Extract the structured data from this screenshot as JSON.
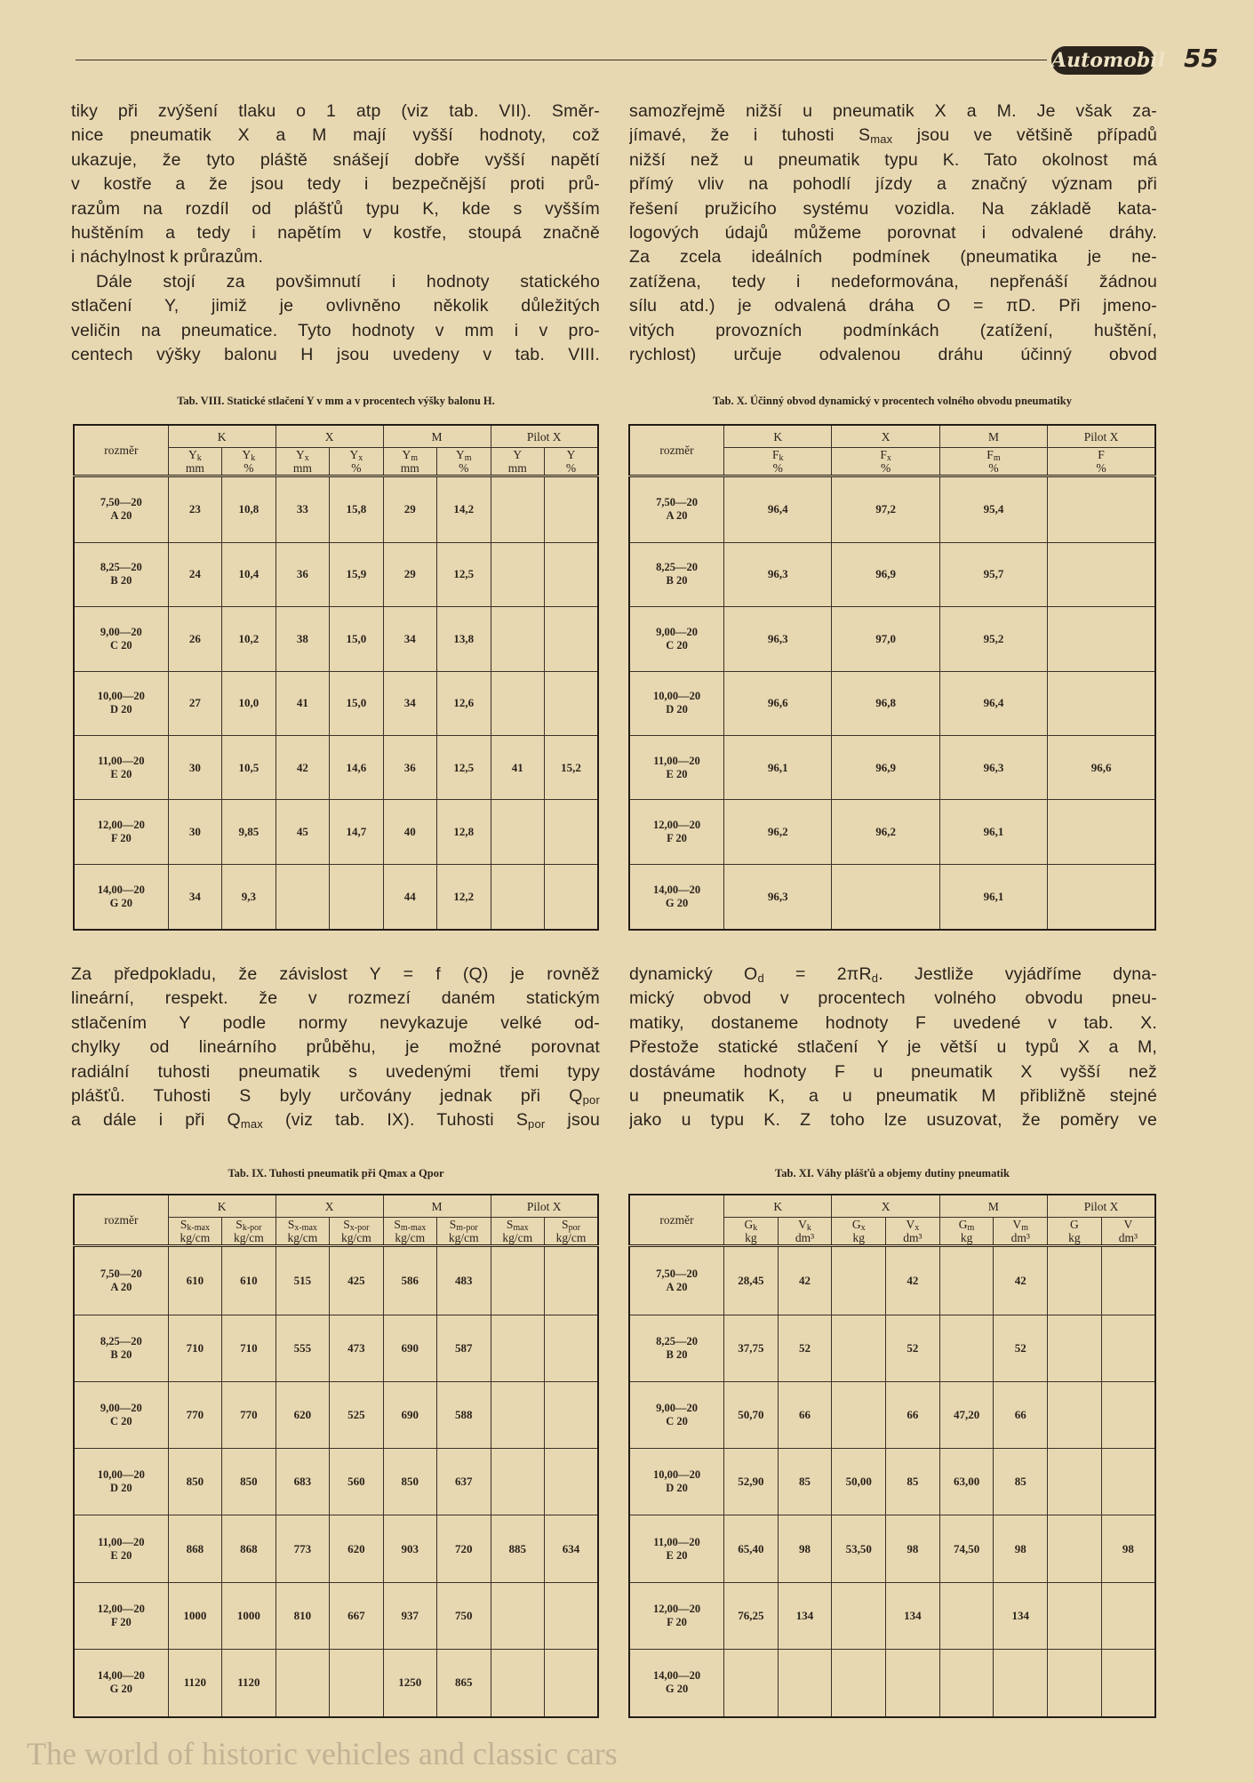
{
  "header": {
    "logo": "Automobil",
    "page_number": "55"
  },
  "text_blocks": [
    {
      "paragraphs": [
        [
          "tiky při zvýšení tlaku o 1 atp (viz tab. VII). Směr-",
          "nice pneumatik X a M mají vyšší hodnoty, což",
          "ukazuje, že tyto pláště snášejí dobře vyšší napětí",
          "v kostře a že jsou tedy i bezpečnější proti prů-",
          "razům na rozdíl od plášťů typu K, kde s vyšším",
          "huštěním a tedy i napětím v kostře, stoupá značně",
          "i náchylnost k průrazům."
        ],
        [
          "Dále stojí za povšimnutí i hodnoty statického",
          "stlačení Y, jimiž je ovlivněno několik důležitých",
          "veličin na pneumatice. Tyto hodnoty v mm i v pro-",
          "centech výšky balonu H jsou uvedeny v tab. VIII."
        ]
      ]
    },
    {
      "paragraphs": [
        [
          "samozřejmě nižší u pneumatik X a M. Je však za-",
          [
            "jímavé, že i tuhosti S",
            {
              "sub": "max"
            },
            " jsou ve většině případů"
          ],
          "nižší než u pneumatik typu K. Tato okolnost má",
          "přímý vliv na pohodlí jízdy a značný význam při",
          "řešení pružicího systému vozidla. Na základě kata-",
          "logových údajů můžeme porovnat i odvalené dráhy.",
          "Za zcela ideálních podmínek (pneumatika je ne-",
          "zatížena, tedy i nedeformována, nepřenáší žádnou",
          "sílu atd.) je odvalená dráha O = πD. Při jmeno-",
          "vitých provozních podmínkách (zatížení, huštění,",
          "rychlost) určuje odvalenou dráhu účinný obvod"
        ]
      ]
    },
    {
      "paragraphs": [
        [
          "Za předpokladu, že závislost Y = f (Q) je rovněž",
          "lineární, respekt. že v rozmezí daném statickým",
          "stlačením Y podle normy nevykazuje velké od-",
          "chylky od lineárního průběhu, je možné porovnat",
          "radiální tuhosti pneumatik s uvedenými třemi typy",
          [
            "plášťů. Tuhosti S byly určovány jednak při Q",
            {
              "sub": "por"
            }
          ],
          [
            "a dále i při Q",
            {
              "sub": "max"
            },
            " (viz tab. IX). Tuhosti S",
            {
              "sub": "por"
            },
            " jsou"
          ]
        ]
      ]
    },
    {
      "paragraphs": [
        [
          [
            "dynamický O",
            {
              "sub": "d"
            },
            " = 2πR",
            {
              "sub": "d"
            },
            ". Jestliže vyjádříme dyna-"
          ],
          "mický obvod v procentech volného obvodu pneu-",
          "matiky, dostaneme hodnoty F uvedené v tab. X.",
          "Přestože statické stlačení Y je větší u typů X a M,",
          "dostáváme hodnoty F u pneumatik X vyšší než",
          "u pneumatik K, a u pneumatik M přibližně stejné",
          "jako u typu K. Z toho lze usuzovat, že poměry ve"
        ]
      ]
    }
  ],
  "tables": [
    {
      "caption": "Tab. VIII. Statické stlačení Y v mm a v procentech výšky balonu H.",
      "row_header": "rozměr",
      "groups": [
        "K",
        "X",
        "M",
        "Pilot X"
      ],
      "columns": [
        {
          "symbol": "Y",
          "sub": "k",
          "unit": "mm"
        },
        {
          "symbol": "Y",
          "sub": "k",
          "unit": "%"
        },
        {
          "symbol": "Y",
          "sub": "x",
          "unit": "mm"
        },
        {
          "symbol": "Y",
          "sub": "x",
          "unit": "%"
        },
        {
          "symbol": "Y",
          "sub": "m",
          "unit": "mm"
        },
        {
          "symbol": "Y",
          "sub": "m",
          "unit": "%"
        },
        {
          "symbol": "Y",
          "unit": "mm"
        },
        {
          "symbol": "Y",
          "unit": "%"
        }
      ],
      "rows": [
        {
          "size": [
            "7,50—20",
            "A 20"
          ],
          "cells": [
            "23",
            "10,8",
            "33",
            "15,8",
            "29",
            "14,2",
            null,
            null
          ]
        },
        {
          "size": [
            "8,25—20",
            "B 20"
          ],
          "cells": [
            "24",
            "10,4",
            "36",
            "15,9",
            "29",
            "12,5",
            null,
            null
          ]
        },
        {
          "size": [
            "9,00—20",
            "C 20"
          ],
          "cells": [
            "26",
            "10,2",
            "38",
            "15,0",
            "34",
            "13,8",
            null,
            null
          ]
        },
        {
          "size": [
            "10,00—20",
            "D 20"
          ],
          "cells": [
            "27",
            "10,0",
            "41",
            "15,0",
            "34",
            "12,6",
            null,
            null
          ]
        },
        {
          "size": [
            "11,00—20",
            "E 20"
          ],
          "cells": [
            "30",
            "10,5",
            "42",
            "14,6",
            "36",
            "12,5",
            "41",
            "15,2"
          ]
        },
        {
          "size": [
            "12,00—20",
            "F 20"
          ],
          "cells": [
            "30",
            "9,85",
            "45",
            "14,7",
            "40",
            "12,8",
            null,
            null
          ]
        },
        {
          "size": [
            "14,00—20",
            "G 20"
          ],
          "cells": [
            "34",
            "9,3",
            null,
            null,
            "44",
            "12,2",
            null,
            null
          ]
        }
      ]
    },
    {
      "caption": "Tab. X. Účinný obvod dynamický v procentech volného obvodu pneumatiky",
      "row_header": "rozměr",
      "groups": [
        "K",
        "X",
        "M",
        "Pilot X"
      ],
      "columns": [
        {
          "symbol": "F",
          "sub": "k",
          "unit": "%"
        },
        {
          "symbol": "F",
          "sub": "x",
          "unit": "%"
        },
        {
          "symbol": "F",
          "sub": "m",
          "unit": "%"
        },
        {
          "symbol": "F",
          "unit": "%"
        }
      ],
      "rows": [
        {
          "size": [
            "7,50—20",
            "A 20"
          ],
          "cells": [
            "96,4",
            "97,2",
            "95,4",
            null
          ]
        },
        {
          "size": [
            "8,25—20",
            "B 20"
          ],
          "cells": [
            "96,3",
            "96,9",
            "95,7",
            null
          ]
        },
        {
          "size": [
            "9,00—20",
            "C 20"
          ],
          "cells": [
            "96,3",
            "97,0",
            "95,2",
            null
          ]
        },
        {
          "size": [
            "10,00—20",
            "D 20"
          ],
          "cells": [
            "96,6",
            "96,8",
            "96,4",
            null
          ]
        },
        {
          "size": [
            "11,00—20",
            "E 20"
          ],
          "cells": [
            "96,1",
            "96,9",
            "96,3",
            "96,6"
          ]
        },
        {
          "size": [
            "12,00—20",
            "F 20"
          ],
          "cells": [
            "96,2",
            "96,2",
            "96,1",
            null
          ]
        },
        {
          "size": [
            "14,00—20",
            "G 20"
          ],
          "cells": [
            "96,3",
            null,
            "96,1",
            null
          ]
        }
      ]
    },
    {
      "caption": "Tab. IX. Tuhosti pneumatik při Qmax a Qpor",
      "row_header": "rozměr",
      "groups": [
        "K",
        "X",
        "M",
        "Pilot X"
      ],
      "columns": [
        {
          "symbol": "S",
          "sub": "k-max",
          "unit": "kg/cm"
        },
        {
          "symbol": "S",
          "sub": "k-por",
          "unit": "kg/cm"
        },
        {
          "symbol": "S",
          "sub": "x-max",
          "unit": "kg/cm"
        },
        {
          "symbol": "S",
          "sub": "x-por",
          "unit": "kg/cm"
        },
        {
          "symbol": "S",
          "sub": "m-max",
          "unit": "kg/cm"
        },
        {
          "symbol": "S",
          "sub": "m-por",
          "unit": "kg/cm"
        },
        {
          "symbol": "S",
          "sub": "max",
          "unit": "kg/cm"
        },
        {
          "symbol": "S",
          "sub": "por",
          "unit": "kg/cm"
        }
      ],
      "rows": [
        {
          "size": [
            "7,50—20",
            "A 20"
          ],
          "cells": [
            "610",
            "610",
            "515",
            "425",
            "586",
            "483",
            null,
            null
          ]
        },
        {
          "size": [
            "8,25—20",
            "B 20"
          ],
          "cells": [
            "710",
            "710",
            "555",
            "473",
            "690",
            "587",
            null,
            null
          ]
        },
        {
          "size": [
            "9,00—20",
            "C 20"
          ],
          "cells": [
            "770",
            "770",
            "620",
            "525",
            "690",
            "588",
            null,
            null
          ]
        },
        {
          "size": [
            "10,00—20",
            "D 20"
          ],
          "cells": [
            "850",
            "850",
            "683",
            "560",
            "850",
            "637",
            null,
            null
          ]
        },
        {
          "size": [
            "11,00—20",
            "E 20"
          ],
          "cells": [
            "868",
            "868",
            "773",
            "620",
            "903",
            "720",
            "885",
            "634"
          ]
        },
        {
          "size": [
            "12,00—20",
            "F 20"
          ],
          "cells": [
            "1000",
            "1000",
            "810",
            "667",
            "937",
            "750",
            null,
            null
          ]
        },
        {
          "size": [
            "14,00—20",
            "G 20"
          ],
          "cells": [
            "1120",
            "1120",
            null,
            null,
            "1250",
            "865",
            null,
            null
          ]
        }
      ]
    },
    {
      "caption": "Tab. XI. Váhy plášťů a objemy dutiny pneumatik",
      "row_header": "rozměr",
      "groups": [
        "K",
        "X",
        "M",
        "Pilot X"
      ],
      "columns": [
        {
          "symbol": "G",
          "sub": "k",
          "unit": "kg"
        },
        {
          "symbol": "V",
          "sub": "k",
          "unit": "dm³"
        },
        {
          "symbol": "G",
          "sub": "x",
          "unit": "kg"
        },
        {
          "symbol": "V",
          "sub": "x",
          "unit": "dm³"
        },
        {
          "symbol": "G",
          "sub": "m",
          "unit": "kg"
        },
        {
          "symbol": "V",
          "sub": "m",
          "unit": "dm³"
        },
        {
          "symbol": "G",
          "unit": "kg"
        },
        {
          "symbol": "V",
          "unit": "dm³"
        }
      ],
      "rows": [
        {
          "size": [
            "7,50—20",
            "A 20"
          ],
          "cells": [
            "28,45",
            "42",
            null,
            "42",
            null,
            "42",
            null,
            null
          ]
        },
        {
          "size": [
            "8,25—20",
            "B 20"
          ],
          "cells": [
            "37,75",
            "52",
            null,
            "52",
            null,
            "52",
            null,
            null
          ]
        },
        {
          "size": [
            "9,00—20",
            "C 20"
          ],
          "cells": [
            "50,70",
            "66",
            null,
            "66",
            "47,20",
            "66",
            null,
            null
          ]
        },
        {
          "size": [
            "10,00—20",
            "D 20"
          ],
          "cells": [
            "52,90",
            "85",
            "50,00",
            "85",
            "63,00",
            "85",
            null,
            null
          ]
        },
        {
          "size": [
            "11,00—20",
            "E 20"
          ],
          "cells": [
            "65,40",
            "98",
            "53,50",
            "98",
            "74,50",
            "98",
            null,
            "98"
          ]
        },
        {
          "size": [
            "12,00—20",
            "F 20"
          ],
          "cells": [
            "76,25",
            "134",
            null,
            "134",
            null,
            "134",
            null,
            null
          ]
        },
        {
          "size": [
            "14,00—20",
            "G 20"
          ],
          "cells": [
            null,
            null,
            null,
            null,
            null,
            null,
            null,
            null
          ]
        }
      ]
    }
  ],
  "watermark": {
    "tagline": "The world of historic vehicles and classic cars"
  }
}
